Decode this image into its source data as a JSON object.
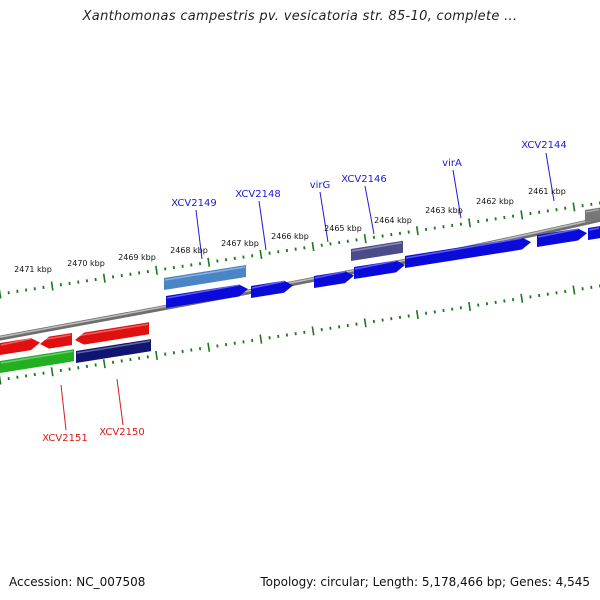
{
  "title": "Xanthomonas campestris pv. vesicatoria str. 85-10, complete ...",
  "footer": {
    "accession": "Accession: NC_007508",
    "info": "Topology: circular; Length: 5,178,466 bp; Genes: 4,545"
  },
  "colors": {
    "backbone": "#8a8a8a",
    "tick": "#1a7a1a",
    "label_top": "#1b1bd6",
    "label_bottom": "#d61b1b",
    "forward_gene": "#0a0adb",
    "forward_gene_light": "#4a86c6",
    "forward_gene_dark": "#4b4b8a",
    "forward_gene_gray": "#777777",
    "reverse_gene": "#e01010",
    "reverse_gene_green": "#22b022",
    "reverse_gene_navy": "#0f1570"
  },
  "scale_labels_top": [
    "2471 kbp",
    "2470 kbp",
    "2469 kbp",
    "2468 kbp",
    "2467 kbp",
    "2466 kbp",
    "2465 kbp",
    "2464 kbp",
    "2463 kbp",
    "2462 kbp",
    "2461 kbp"
  ],
  "gene_labels_top": [
    "XCV2149",
    "XCV2148",
    "virG",
    "XCV2146",
    "virA",
    "XCV2144"
  ],
  "gene_labels_bottom": [
    "XCV2151",
    "XCV2150"
  ],
  "forward_genes": [
    "XCV2149",
    "XCV2148",
    "virG",
    "XCV2146",
    "virA",
    "XCV2144"
  ],
  "reverse_genes": [
    "XCV2151",
    "XCV2150"
  ]
}
